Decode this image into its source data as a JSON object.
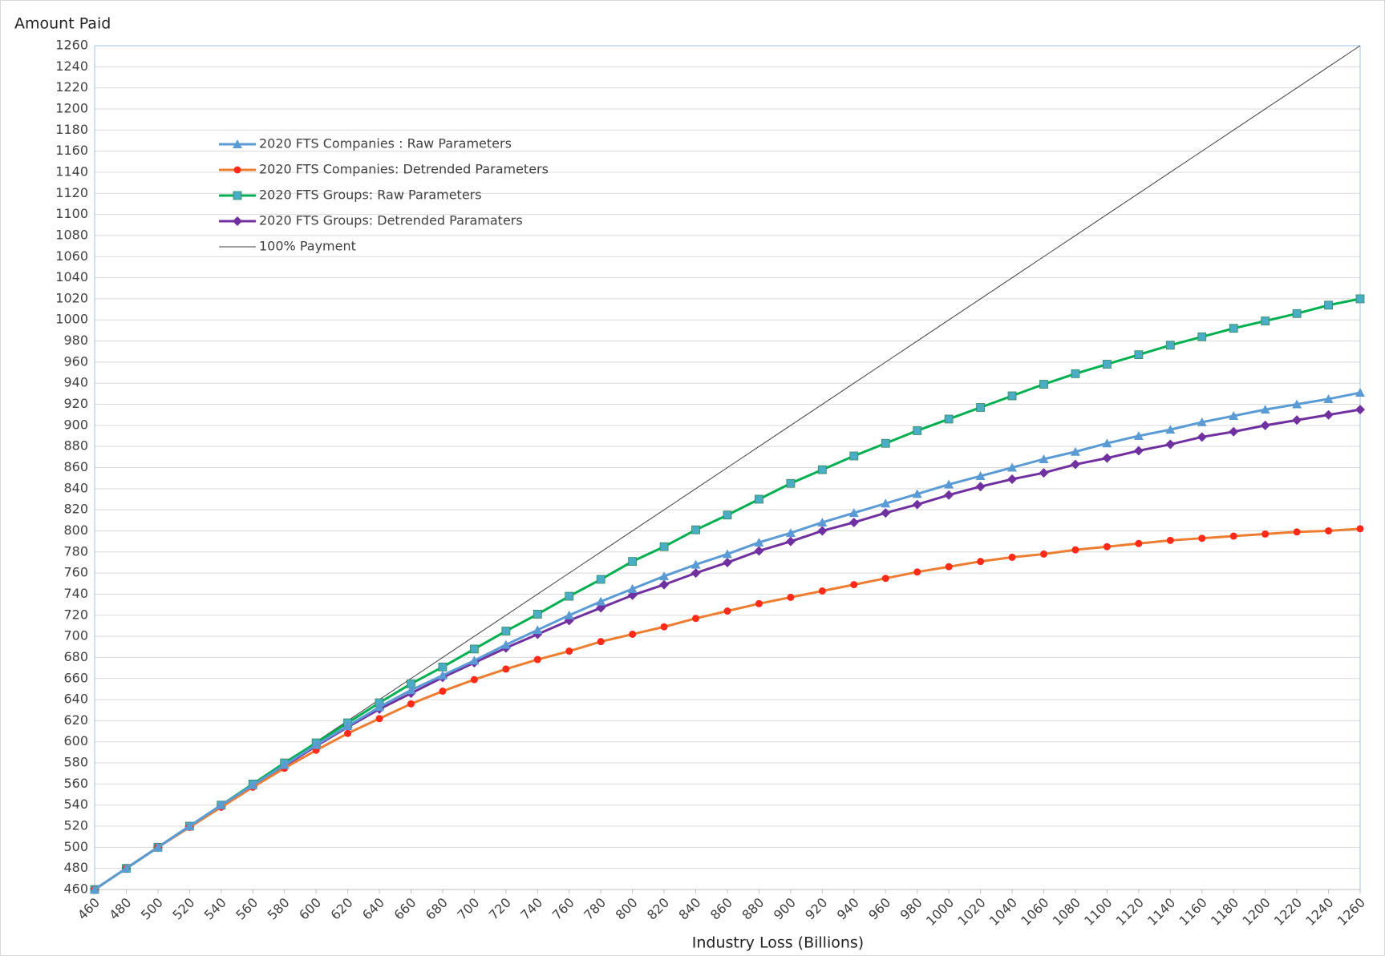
{
  "chart_data": {
    "type": "line",
    "y_label": "Amount Paid",
    "x_label": "Industry Loss (Billions)",
    "x": [
      460,
      480,
      500,
      520,
      540,
      560,
      580,
      600,
      620,
      640,
      660,
      680,
      700,
      720,
      740,
      760,
      780,
      800,
      820,
      840,
      860,
      880,
      900,
      920,
      940,
      960,
      980,
      1000,
      1020,
      1040,
      1060,
      1080,
      1100,
      1120,
      1140,
      1160,
      1180,
      1200,
      1220,
      1240,
      1260
    ],
    "xlim": [
      460,
      1260
    ],
    "xticks": [
      460,
      480,
      500,
      520,
      540,
      560,
      580,
      600,
      620,
      640,
      660,
      680,
      700,
      720,
      740,
      760,
      780,
      800,
      820,
      840,
      860,
      880,
      900,
      920,
      940,
      960,
      980,
      1000,
      1020,
      1040,
      1060,
      1080,
      1100,
      1120,
      1140,
      1160,
      1180,
      1200,
      1220,
      1240,
      1260
    ],
    "ylim": [
      460,
      1260
    ],
    "yticks": [
      460,
      480,
      500,
      520,
      540,
      560,
      580,
      600,
      620,
      640,
      660,
      680,
      700,
      720,
      740,
      760,
      780,
      800,
      820,
      840,
      860,
      880,
      900,
      920,
      940,
      960,
      980,
      1000,
      1020,
      1040,
      1060,
      1080,
      1100,
      1120,
      1140,
      1160,
      1180,
      1200,
      1220,
      1240,
      1260
    ],
    "grid": true,
    "legend": "upper left",
    "series": [
      {
        "name": "2020 FTS Companies : Raw Parameters",
        "color": "#5b9bd5",
        "marker": "triangle",
        "marker_color": "#5b9bd5",
        "values": [
          460,
          480,
          500,
          520,
          540,
          559,
          578,
          597,
          615,
          633,
          649,
          663,
          677,
          692,
          706,
          720,
          733,
          745,
          757,
          768,
          778,
          789,
          798,
          808,
          817,
          826,
          835,
          844,
          852,
          860,
          868,
          875,
          883,
          890,
          896,
          903,
          909,
          915,
          920,
          925,
          931
        ]
      },
      {
        "name": "2020 FTS Companies: Detrended Parameters",
        "color": "#ed7d31",
        "marker": "circle",
        "marker_color": "#ff2a1a",
        "values": [
          460,
          480,
          500,
          519,
          538,
          557,
          575,
          592,
          608,
          622,
          636,
          648,
          659,
          669,
          678,
          686,
          695,
          702,
          709,
          717,
          724,
          731,
          737,
          743,
          749,
          755,
          761,
          766,
          771,
          775,
          778,
          782,
          785,
          788,
          791,
          793,
          795,
          797,
          799,
          800,
          802
        ]
      },
      {
        "name": "2020 FTS Groups: Raw Parameters",
        "color": "#00b050",
        "marker": "square",
        "marker_color": "#4bacc6",
        "values": [
          460,
          480,
          500,
          520,
          540,
          560,
          580,
          599,
          618,
          637,
          655,
          671,
          688,
          705,
          721,
          738,
          754,
          771,
          785,
          801,
          815,
          830,
          845,
          858,
          871,
          883,
          895,
          906,
          917,
          928,
          939,
          949,
          958,
          967,
          976,
          984,
          992,
          999,
          1006,
          1014,
          1020
        ]
      },
      {
        "name": "2020 FTS Groups: Detrended Paramaters",
        "color": "#7030a0",
        "marker": "diamond",
        "marker_color": "#7030a0",
        "values": [
          460,
          480,
          500,
          520,
          539,
          558,
          577,
          596,
          614,
          631,
          646,
          661,
          675,
          689,
          702,
          715,
          727,
          739,
          749,
          760,
          770,
          781,
          790,
          800,
          808,
          817,
          825,
          834,
          842,
          849,
          855,
          863,
          869,
          876,
          882,
          889,
          894,
          900,
          905,
          910,
          915
        ]
      },
      {
        "name": "100% Payment",
        "color": "#404040",
        "marker": "none",
        "marker_color": "#404040",
        "values": [
          460,
          480,
          500,
          520,
          540,
          560,
          580,
          600,
          620,
          640,
          660,
          680,
          700,
          720,
          740,
          760,
          780,
          800,
          820,
          840,
          860,
          880,
          900,
          920,
          940,
          960,
          980,
          1000,
          1020,
          1040,
          1060,
          1080,
          1100,
          1120,
          1140,
          1160,
          1180,
          1200,
          1220,
          1240,
          1260
        ]
      }
    ]
  }
}
